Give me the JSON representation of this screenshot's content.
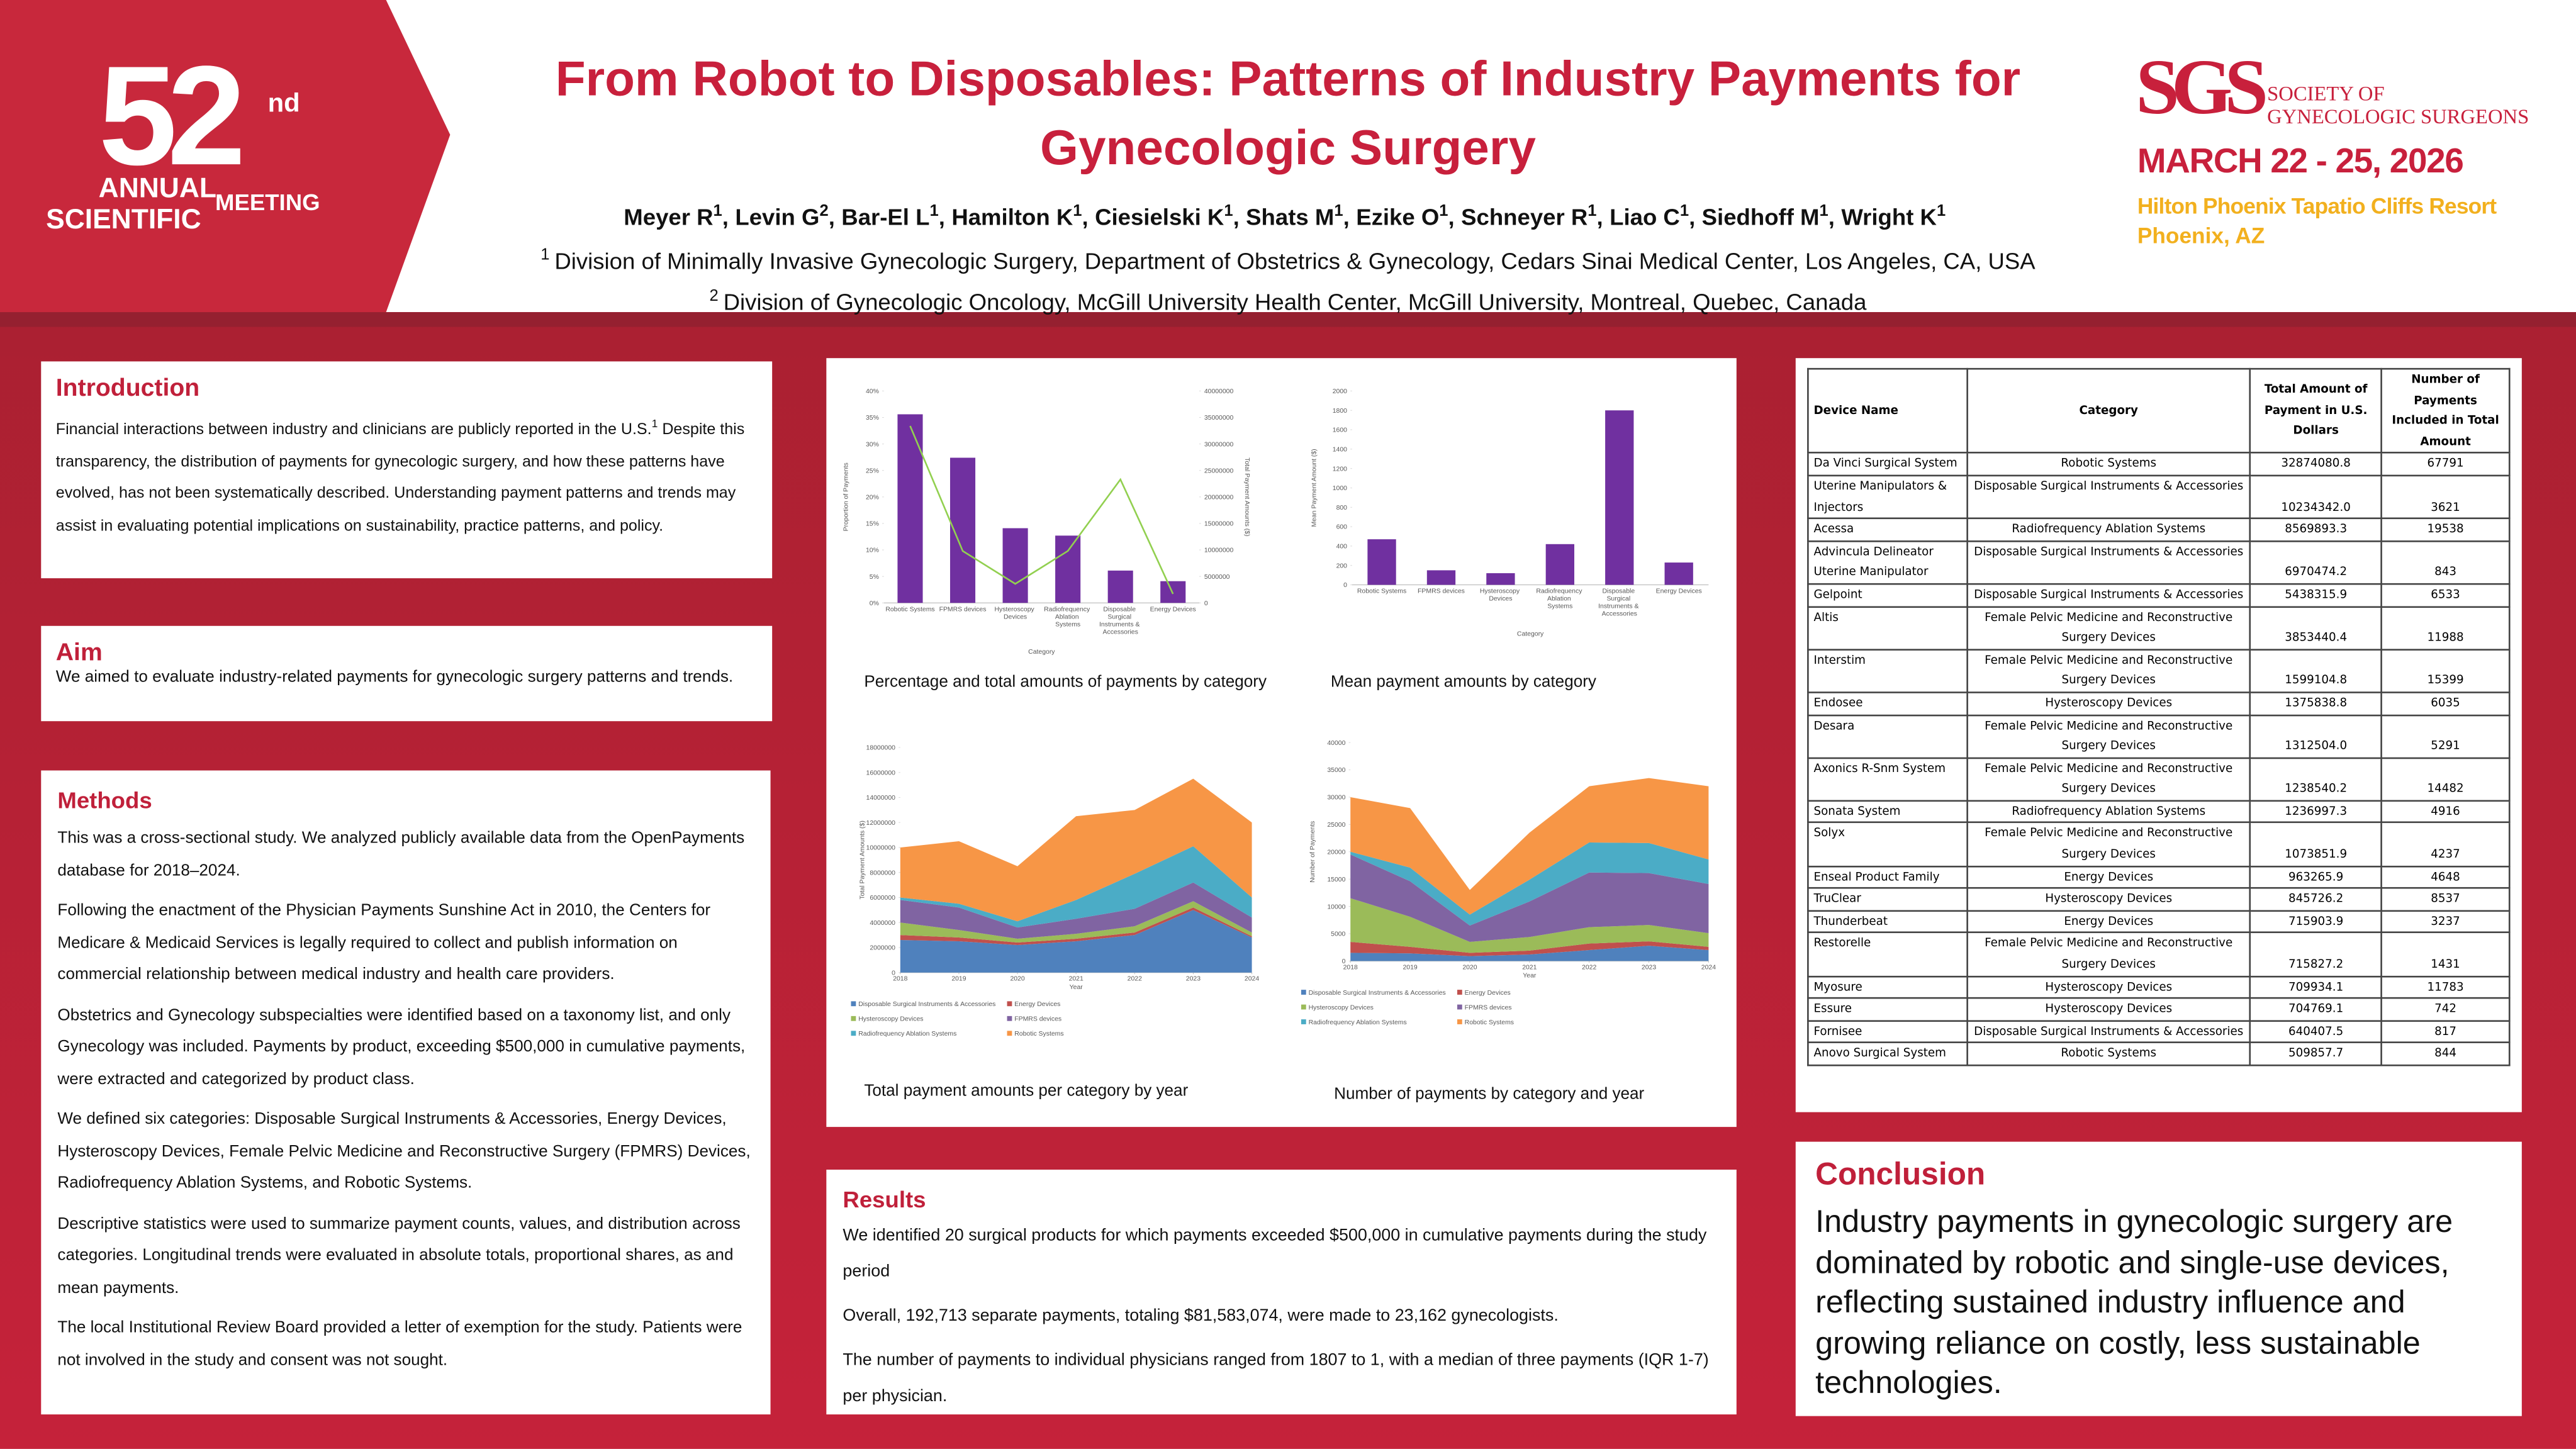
{
  "header": {
    "logo": {
      "number": "52",
      "suffix": "nd",
      "line1": "ANNUAL",
      "line2": "SCIENTIFIC",
      "line3": "MEETING"
    },
    "title": "From Robot to Disposables: Patterns of Industry Payments for Gynecologic Surgery",
    "authors": [
      {
        "name": "Meyer R",
        "sup": "1",
        "sep": ","
      },
      {
        "name": "Levin G",
        "sup": "2",
        "sep": ","
      },
      {
        "name": "Bar-El L",
        "sup": "1",
        "sep": ","
      },
      {
        "name": "Hamilton K",
        "sup": "1",
        "sep": ","
      },
      {
        "name": "Ciesielski K",
        "sup": "1",
        "sep": ","
      },
      {
        "name": "Shats M",
        "sup": "1",
        "sep": ","
      },
      {
        "name": "Ezike O",
        "sup": "1",
        "sep": ","
      },
      {
        "name": "Schneyer R",
        "sup": "1",
        "sep": ","
      },
      {
        "name": "Liao C",
        "sup": "1",
        "sep": ","
      },
      {
        "name": "Siedhoff M",
        "sup": "1",
        "sep": ","
      },
      {
        "name": "Wright K",
        "sup": "1"
      }
    ],
    "affiliations": [
      {
        "sup": "1",
        "text": "Division of Minimally Invasive Gynecologic Surgery, Department of Obstetrics & Gynecology, Cedars Sinai Medical Center, Los Angeles, CA, USA"
      },
      {
        "sup": "2",
        "text": "Division of Gynecologic Oncology, McGill University Health Center, McGill University, Montreal, Quebec, Canada"
      }
    ],
    "society": {
      "abbr": "SGS",
      "name1": "SOCIETY OF",
      "name2": "GYNECOLOGIC SURGEONS",
      "dates": "MARCH 22 - 25, 2026",
      "venue": "Hilton Phoenix Tapatio Cliffs Resort",
      "city": "Phoenix, AZ"
    }
  },
  "introduction": {
    "title": "Introduction",
    "text": "Financial interactions between industry and clinicians are publicly reported in the U.S.",
    "sup": "1",
    "text2": "Despite this transparency, the distribution of payments for gynecologic surgery, and how these patterns have evolved, has not been systematically described. Understanding payment patterns and trends may assist in evaluating potential implications on sustainability, practice patterns, and policy."
  },
  "aim": {
    "title": "Aim",
    "text": "We aimed to evaluate industry-related payments for gynecologic surgery patterns and trends."
  },
  "methods": {
    "title": "Methods",
    "paragraphs": [
      "This was a cross-sectional study. We analyzed publicly available data from the OpenPayments database for 2018–2024.",
      "Following the enactment of the Physician Payments Sunshine Act in 2010, the Centers for Medicare & Medicaid Services is legally required to collect and publish information on commercial relationship between medical industry and health care providers.",
      "Obstetrics and Gynecology subspecialties were identified based on a taxonomy list, and only Gynecology was included. Payments by product, exceeding $500,000 in cumulative payments, were extracted and categorized by product class.",
      "We defined six categories: Disposable Surgical Instruments & Accessories, Energy Devices, Hysteroscopy Devices, Female Pelvic Medicine and Reconstructive Surgery (FPMRS) Devices, Radiofrequency Ablation Systems, and Robotic Systems.",
      "Descriptive statistics were used to summarize payment counts, values, and distribution across categories. Longitudinal trends were evaluated in absolute totals, proportional shares, as and mean payments.",
      "The local Institutional Review Board provided a letter of exemption for the study. Patients were not involved in the study and consent was not sought."
    ]
  },
  "results": {
    "title": "Results",
    "paragraphs": [
      "We identified 20 surgical products for which payments exceeded $500,000 in cumulative payments during the study period",
      "Overall, 192,713 separate payments, totaling $81,583,074, were made to 23,162 gynecologists.",
      "The number of payments to individual physicians ranged from 1807 to 1, with a median of three payments (IQR 1-7) per physician."
    ]
  },
  "conclusion": {
    "title": "Conclusion",
    "text": "Industry payments in gynecologic surgery are dominated by robotic and single-use devices, reflecting sustained industry influence and growing reliance on costly, less sustainable technologies."
  },
  "table": {
    "header": [
      "Device Name",
      "Category",
      "Total Amount of Payment in U.S. Dollars",
      "Number of Payments Included in Total Amount"
    ],
    "rows": [
      [
        "Da Vinci Surgical System",
        "Robotic Systems",
        "32874080.8",
        "67791"
      ],
      [
        "Uterine Manipulators & Injectors",
        "Disposable Surgical Instruments & Accessories",
        "10234342.0",
        "3621"
      ],
      [
        "Acessa",
        "Radiofrequency Ablation Systems",
        "8569893.3",
        "19538"
      ],
      [
        "Advincula Delineator Uterine Manipulator",
        "Disposable Surgical Instruments & Accessories",
        "6970474.2",
        "843"
      ],
      [
        "Gelpoint",
        "Disposable Surgical Instruments & Accessories",
        "5438315.9",
        "6533"
      ],
      [
        "Altis",
        "Female Pelvic Medicine and Reconstructive Surgery Devices",
        "3853440.4",
        "11988"
      ],
      [
        "Interstim",
        "Female Pelvic Medicine and Reconstructive Surgery Devices",
        "1599104.8",
        "15399"
      ],
      [
        "Endosee",
        "Hysteroscopy Devices",
        "1375838.8",
        "6035"
      ],
      [
        "Desara",
        "Female Pelvic Medicine and Reconstructive Surgery Devices",
        "1312504.0",
        "5291"
      ],
      [
        "Axonics R-Snm System",
        "Female Pelvic Medicine and Reconstructive Surgery Devices",
        "1238540.2",
        "14482"
      ],
      [
        "Sonata System",
        "Radiofrequency Ablation Systems",
        "1236997.3",
        "4916"
      ],
      [
        "Solyx",
        "Female Pelvic Medicine and Reconstructive Surgery Devices",
        "1073851.9",
        "4237"
      ],
      [
        "Enseal Product Family",
        "Energy Devices",
        "963265.9",
        "4648"
      ],
      [
        "TruClear",
        "Hysteroscopy Devices",
        "845726.2",
        "8537"
      ],
      [
        "Thunderbeat",
        "Energy Devices",
        "715903.9",
        "3237"
      ],
      [
        "Restorelle",
        "Female Pelvic Medicine and Reconstructive Surgery Devices",
        "715827.2",
        "1431"
      ],
      [
        "Myosure",
        "Hysteroscopy Devices",
        "709934.1",
        "11783"
      ],
      [
        "Essure",
        "Hysteroscopy Devices",
        "704769.1",
        "742"
      ],
      [
        "Fornisee",
        "Disposable Surgical Instruments & Accessories",
        "640407.5",
        "817"
      ],
      [
        "Anovo Surgical System",
        "Robotic Systems",
        "509857.7",
        "844"
      ]
    ]
  },
  "chart_data": [
    {
      "type": "combo",
      "title": "Percentage and total amounts of payments by category",
      "x_label": "Category",
      "y_label": "Proportion of Payments",
      "y2_label": "Total Payment Amounts ($)",
      "categories": [
        "Robotic Systems",
        "FPMRS devices",
        "Hysteroscopy Devices",
        "Radiofrequency Ablation Systems",
        "Disposable Surgical Instruments & Accessories",
        "Energy Devices"
      ],
      "series": [
        {
          "type": "bar",
          "color": "#7030a0",
          "values": [
            35.6,
            27.4,
            14.1,
            12.7,
            6.1,
            4.1
          ]
        },
        {
          "type": "line",
          "axis": "y2",
          "color": "#92d050",
          "values": [
            33400000,
            9800000,
            3600000,
            9800000,
            23300000,
            1700000
          ]
        }
      ],
      "ylim": [
        0,
        40
      ],
      "yticks": [
        {
          "value": 0,
          "label": "0%"
        },
        {
          "value": 5,
          "label": "5%"
        },
        {
          "value": 10,
          "label": "10%"
        },
        {
          "value": 15,
          "label": "15%"
        },
        {
          "value": 20,
          "label": "20%"
        },
        {
          "value": 25,
          "label": "25%"
        },
        {
          "value": 30,
          "label": "30%"
        },
        {
          "value": 35,
          "label": "35%"
        },
        {
          "value": 40,
          "label": "40%"
        }
      ],
      "y2lim": [
        0,
        40000000
      ],
      "y2ticks": [
        0,
        5000000,
        10000000,
        15000000,
        20000000,
        25000000,
        30000000,
        35000000,
        40000000
      ]
    },
    {
      "type": "bar",
      "title": "Mean payment amounts by category",
      "x_label": "Category",
      "y_label": "Mean Payment Amount ($)",
      "categories": [
        "Robotic Systems",
        "FPMRS devices",
        "Hysteroscopy Devices",
        "Radiofrequency Ablation Systems",
        "Disposable Surgical Instruments & Accessories",
        "Energy Devices"
      ],
      "series": [
        {
          "type": "bar",
          "color": "#7030a0",
          "values": [
            470,
            150,
            120,
            420,
            1800,
            230
          ]
        }
      ],
      "ylim": [
        0,
        2000
      ],
      "yticks": [
        0,
        200,
        400,
        600,
        800,
        1000,
        1200,
        1400,
        1600,
        1800,
        2000
      ]
    },
    {
      "type": "area",
      "title": "Total payment amounts per category by year",
      "x_label": "Year",
      "y_label": "Total Payment Amounts ($)",
      "x": [
        2018,
        2019,
        2020,
        2021,
        2022,
        2023,
        2024
      ],
      "xlim": [
        2018,
        2024
      ],
      "xticks": [
        2018,
        2019,
        2020,
        2021,
        2022,
        2023,
        2024
      ],
      "series": [
        {
          "name": "Disposable Surgical Instruments & Accessories",
          "color": "#4f81bd",
          "values": [
            2600000,
            2500000,
            2200000,
            2500000,
            3000000,
            5000000,
            2800000
          ]
        },
        {
          "name": "Energy Devices",
          "color": "#c0504d",
          "values": [
            400000,
            300000,
            200000,
            200000,
            200000,
            200000,
            100000
          ]
        },
        {
          "name": "Hysteroscopy Devices",
          "color": "#9bbb59",
          "values": [
            1000000,
            600000,
            300000,
            400000,
            500000,
            500000,
            300000
          ]
        },
        {
          "name": "FPMRS devices",
          "color": "#8064a2",
          "values": [
            1800000,
            1800000,
            900000,
            1200000,
            1400000,
            1500000,
            1200000
          ]
        },
        {
          "name": "Radiofrequency Ablation Systems",
          "color": "#4bacc6",
          "values": [
            200000,
            300000,
            500000,
            1500000,
            2800000,
            2900000,
            1600000
          ]
        },
        {
          "name": "Robotic Systems",
          "color": "#f79646",
          "values": [
            4000000,
            5000000,
            4400000,
            6700000,
            5100000,
            5400000,
            6000000
          ]
        }
      ],
      "ylim": [
        0,
        18000000
      ],
      "yticks": [
        0,
        2000000,
        4000000,
        6000000,
        8000000,
        10000000,
        12000000,
        14000000,
        16000000,
        18000000
      ]
    },
    {
      "type": "area",
      "title": "Number of payments by category and year",
      "x_label": "Year",
      "y_label": "Number of Payments",
      "x": [
        2018,
        2019,
        2020,
        2021,
        2022,
        2023,
        2024
      ],
      "xlim": [
        2018,
        2024
      ],
      "xticks": [
        2018,
        2019,
        2020,
        2021,
        2022,
        2023,
        2024
      ],
      "series": [
        {
          "name": "Disposable Surgical Instruments & Accessories",
          "color": "#4f81bd",
          "values": [
            1500,
            1400,
            900,
            1200,
            2000,
            2800,
            2000
          ]
        },
        {
          "name": "Energy Devices",
          "color": "#c0504d",
          "values": [
            2000,
            1200,
            600,
            700,
            1200,
            800,
            600
          ]
        },
        {
          "name": "Hysteroscopy Devices",
          "color": "#9bbb59",
          "values": [
            8000,
            5500,
            2000,
            2500,
            3000,
            3000,
            2500
          ]
        },
        {
          "name": "FPMRS devices",
          "color": "#8064a2",
          "values": [
            8000,
            6500,
            3000,
            6500,
            10000,
            9500,
            9000
          ]
        },
        {
          "name": "Radiofrequency Ablation Systems",
          "color": "#4bacc6",
          "values": [
            500,
            2500,
            2000,
            4000,
            5500,
            5500,
            4500
          ]
        },
        {
          "name": "Robotic Systems",
          "color": "#f79646",
          "values": [
            10000,
            10900,
            4500,
            8600,
            10300,
            11900,
            13400
          ]
        }
      ],
      "ylim": [
        0,
        40000
      ],
      "yticks": [
        0,
        5000,
        10000,
        15000,
        20000,
        25000,
        30000,
        35000,
        40000
      ]
    }
  ]
}
